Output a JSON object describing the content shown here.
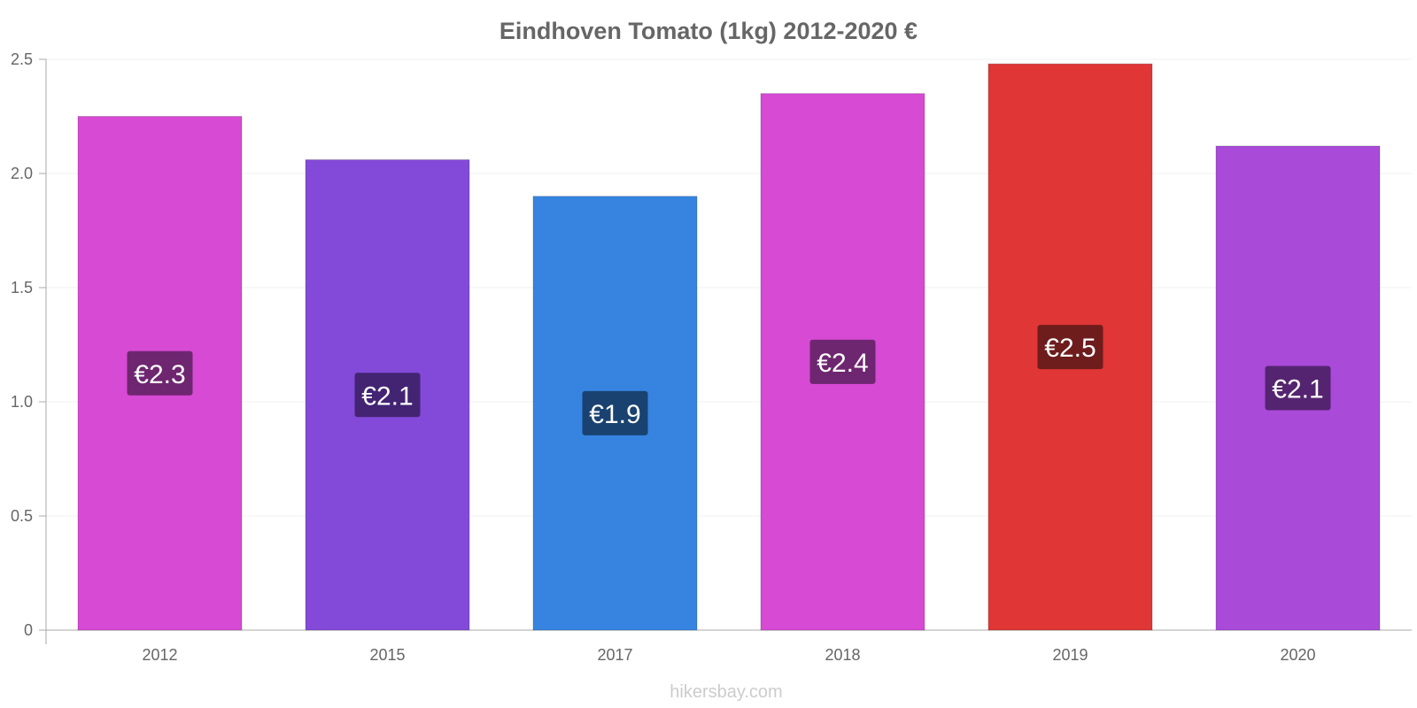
{
  "chart_data": {
    "type": "bar",
    "title": "Eindhoven Tomato (1kg) 2012-2020 €",
    "xlabel": "",
    "ylabel": "",
    "categories": [
      "2012",
      "2015",
      "2017",
      "2018",
      "2019",
      "2020"
    ],
    "values": [
      2.25,
      2.06,
      1.9,
      2.35,
      2.48,
      2.12
    ],
    "data_labels": [
      "€2.3",
      "€2.1",
      "€1.9",
      "€2.4",
      "€2.5",
      "€2.1"
    ],
    "bar_colors": [
      "#d64ad4",
      "#834ad9",
      "#3684e0",
      "#d64ad4",
      "#e03636",
      "#a94ad9"
    ],
    "label_bg_colors": [
      "#6e2670",
      "#432473",
      "#1a4270",
      "#6e2670",
      "#6e1c1c",
      "#552470"
    ],
    "ylim": [
      0,
      2.5
    ],
    "yticks": [
      0,
      0.5,
      1.0,
      1.5,
      2.0,
      2.5
    ],
    "ytick_labels": [
      "0",
      "0.5",
      "1.0",
      "1.5",
      "2.0",
      "2.5"
    ],
    "grid": true,
    "legend": "none"
  },
  "watermark": "hikersbay.com"
}
